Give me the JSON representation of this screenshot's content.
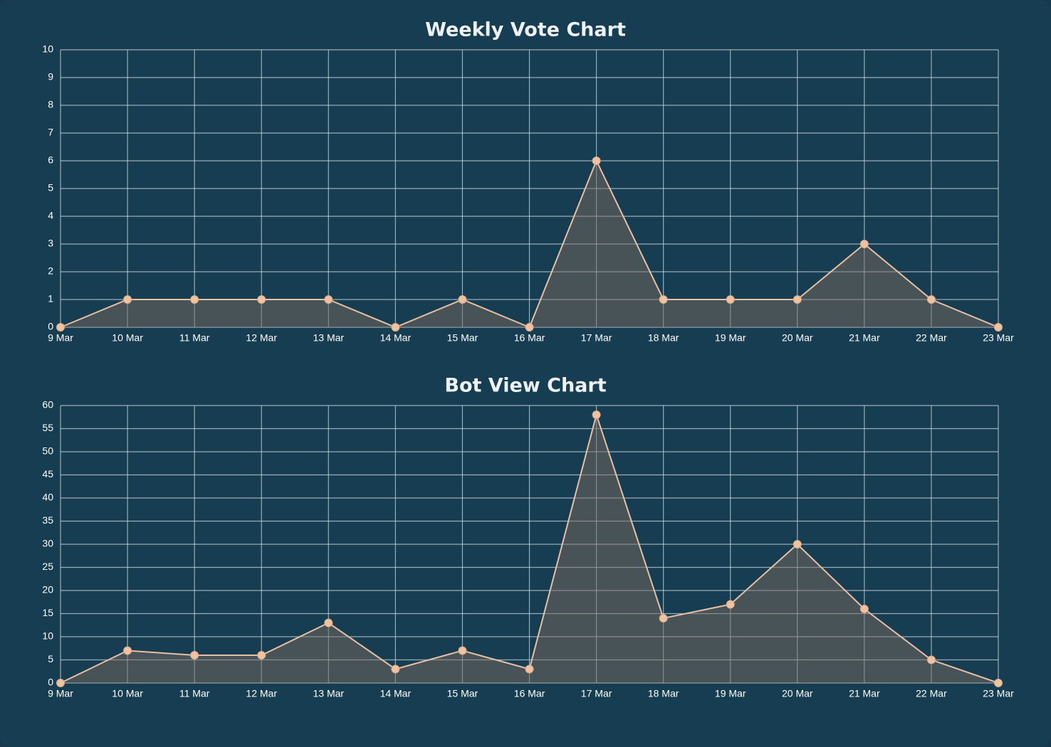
{
  "chart_data": [
    {
      "type": "area",
      "title": "Weekly Vote Chart",
      "xlabel": "",
      "ylabel": "",
      "categories": [
        "9 Mar",
        "10 Mar",
        "11 Mar",
        "12 Mar",
        "13 Mar",
        "14 Mar",
        "15 Mar",
        "16 Mar",
        "17 Mar",
        "18 Mar",
        "19 Mar",
        "20 Mar",
        "21 Mar",
        "22 Mar",
        "23 Mar"
      ],
      "values": [
        0,
        1,
        1,
        1,
        1,
        0,
        1,
        0,
        6,
        1,
        1,
        1,
        3,
        1,
        0
      ],
      "ylim": [
        0,
        10
      ],
      "ytick_step": 1,
      "grid": true,
      "colors": {
        "line": "#e8c0a4",
        "point": "#efc2a0",
        "fill": "#7a6a60",
        "grid": "#c9d2d8"
      }
    },
    {
      "type": "area",
      "title": "Bot View Chart",
      "xlabel": "",
      "ylabel": "",
      "categories": [
        "9 Mar",
        "10 Mar",
        "11 Mar",
        "12 Mar",
        "13 Mar",
        "14 Mar",
        "15 Mar",
        "16 Mar",
        "17 Mar",
        "18 Mar",
        "19 Mar",
        "20 Mar",
        "21 Mar",
        "22 Mar",
        "23 Mar"
      ],
      "values": [
        0,
        7,
        6,
        6,
        13,
        3,
        7,
        3,
        58,
        14,
        17,
        30,
        16,
        5,
        0
      ],
      "ylim": [
        0,
        60
      ],
      "ytick_step": 5,
      "grid": true,
      "colors": {
        "line": "#e8c0a4",
        "point": "#efc2a0",
        "fill": "#7a6a60",
        "grid": "#c9d2d8"
      }
    }
  ]
}
